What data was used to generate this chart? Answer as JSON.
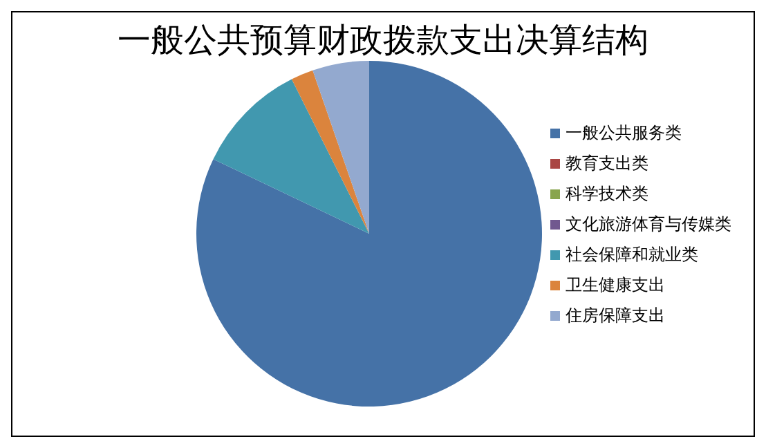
{
  "chart_data": {
    "type": "pie",
    "title": "一般公共预算财政拨款支出决算结构",
    "categories": [
      "一般公共服务类",
      "教育支出类",
      "科学技术类",
      "文化旅游体育与传媒类",
      "社会保障和就业类",
      "卫生健康支出",
      "住房保障支出"
    ],
    "values": [
      82.1,
      0,
      0,
      0,
      10.5,
      2.1,
      5.3
    ],
    "colors": [
      "#4572a7",
      "#aa4643",
      "#89a54e",
      "#71588f",
      "#4198af",
      "#db843d",
      "#93a9cf"
    ],
    "legend": "right"
  }
}
